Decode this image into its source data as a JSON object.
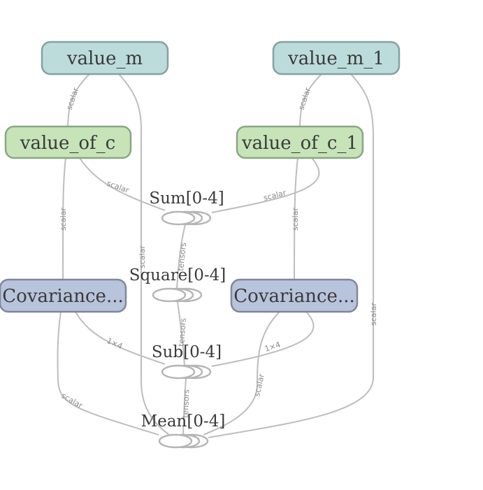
{
  "colors": {
    "value_fill": "#bcdcdc",
    "value_stroke": "#86a0a0",
    "fit_fill": "#c6e4b8",
    "fit_stroke": "#8aa684",
    "cov_fill": "#b8c3dc",
    "cov_stroke": "#7f879c",
    "edge": "#bdbdbd",
    "edge_label": "#8a8a8a",
    "text": "#3a3a3a"
  },
  "nodes": {
    "value_m": "value_m",
    "value_m_1": "value_m_1",
    "value_of_c": "value_of_c",
    "value_of_c_1": "value_of_c_1",
    "covariance_left": "Covariance...",
    "covariance_right": "Covariance..."
  },
  "ops": {
    "sum": "Sum[0-4]",
    "square": "Square[0-4]",
    "sub": "Sub[0-4]",
    "mean": "Mean[0-4]"
  },
  "edge_labels": {
    "scalar": "scalar",
    "tensors": "tensors",
    "one_by_four": "1×4"
  }
}
